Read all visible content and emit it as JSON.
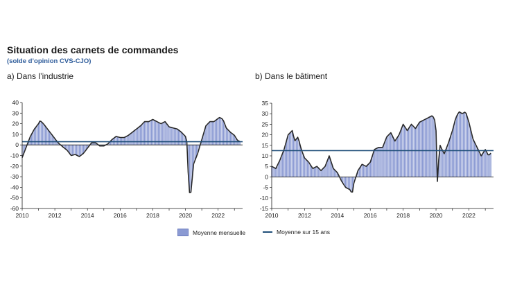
{
  "title": "Situation des carnets de commandes",
  "subtitle": "(solde d’opinion CVS-CJO)",
  "legend": {
    "bars": "Moyenne mensuelle",
    "line": "Moyenne sur 15 ans"
  },
  "colors": {
    "bars": "#8b9ad3",
    "line": "#2a2a2a",
    "average": "#1f4e79"
  },
  "chart_data": [
    {
      "type": "bar",
      "panel_label": "a)  Dans l’industrie",
      "x_ticks": [
        "2010",
        "2012",
        "2014",
        "2016",
        "2018",
        "2020",
        "2022"
      ],
      "y_ticks": [
        40,
        30,
        20,
        10,
        0,
        -10,
        -20,
        -30,
        -40,
        -50,
        -60
      ],
      "ylim": [
        -60,
        40
      ],
      "xlim": [
        2010,
        2023.5
      ],
      "average": 3,
      "x": [
        2010.0,
        2010.25,
        2010.5,
        2010.75,
        2011.0,
        2011.1,
        2011.3,
        2011.6,
        2011.9,
        2012.2,
        2012.5,
        2012.75,
        2013.0,
        2013.25,
        2013.5,
        2013.75,
        2014.0,
        2014.25,
        2014.5,
        2014.75,
        2015.0,
        2015.25,
        2015.5,
        2015.75,
        2016.0,
        2016.25,
        2016.5,
        2016.75,
        2017.0,
        2017.25,
        2017.5,
        2017.75,
        2018.0,
        2018.25,
        2018.5,
        2018.75,
        2019.0,
        2019.25,
        2019.5,
        2019.75,
        2020.0,
        2020.1,
        2020.2,
        2020.3,
        2020.5,
        2020.75,
        2021.0,
        2021.25,
        2021.5,
        2021.75,
        2022.0,
        2022.1,
        2022.3,
        2022.5,
        2022.75,
        2023.0,
        2023.2,
        2023.4
      ],
      "values": [
        -12,
        -2,
        8,
        15,
        20,
        23,
        20,
        14,
        8,
        2,
        -2,
        -5,
        -10,
        -9,
        -11,
        -8,
        -3,
        2,
        2,
        -1,
        -1,
        1,
        5,
        8,
        7,
        7,
        9,
        12,
        15,
        18,
        22,
        22,
        24,
        22,
        20,
        22,
        17,
        16,
        15,
        12,
        8,
        2,
        -40,
        -50,
        -18,
        -8,
        5,
        18,
        22,
        22,
        25,
        26,
        24,
        16,
        12,
        9,
        4,
        3
      ]
    },
    {
      "type": "bar",
      "panel_label": "b)  Dans le bâtiment",
      "x_ticks": [
        "2010",
        "2012",
        "2014",
        "2016",
        "2018",
        "2020",
        "2022"
      ],
      "y_ticks": [
        35,
        30,
        25,
        20,
        15,
        10,
        5,
        0,
        -5,
        -10,
        -15
      ],
      "ylim": [
        -15,
        35
      ],
      "xlim": [
        2010,
        2023.5
      ],
      "average": 12.5,
      "x": [
        2010.0,
        2010.25,
        2010.5,
        2010.75,
        2011.0,
        2011.25,
        2011.4,
        2011.6,
        2011.8,
        2012.0,
        2012.25,
        2012.5,
        2012.75,
        2013.0,
        2013.25,
        2013.5,
        2013.75,
        2014.0,
        2014.25,
        2014.5,
        2014.75,
        2014.9,
        2015.0,
        2015.25,
        2015.5,
        2015.75,
        2016.0,
        2016.25,
        2016.5,
        2016.75,
        2017.0,
        2017.25,
        2017.5,
        2017.75,
        2018.0,
        2018.25,
        2018.5,
        2018.75,
        2019.0,
        2019.25,
        2019.5,
        2019.75,
        2019.9,
        2020.0,
        2020.1,
        2020.2,
        2020.3,
        2020.5,
        2020.75,
        2021.0,
        2021.2,
        2021.4,
        2021.6,
        2021.8,
        2022.0,
        2022.25,
        2022.5,
        2022.75,
        2023.0,
        2023.2,
        2023.4
      ],
      "values": [
        5,
        4,
        8,
        13,
        20,
        22,
        17,
        19,
        13,
        9,
        7,
        4,
        5,
        3,
        5,
        10,
        4,
        2,
        -2,
        -5,
        -6,
        -8,
        -3,
        3,
        6,
        5,
        7,
        13,
        14,
        14,
        19,
        21,
        17,
        20,
        25,
        22,
        25,
        23,
        26,
        27,
        28,
        29,
        28,
        22,
        -7,
        16,
        14,
        11,
        16,
        22,
        28,
        31,
        30,
        31,
        26,
        18,
        14,
        10,
        13,
        10,
        12
      ]
    }
  ]
}
